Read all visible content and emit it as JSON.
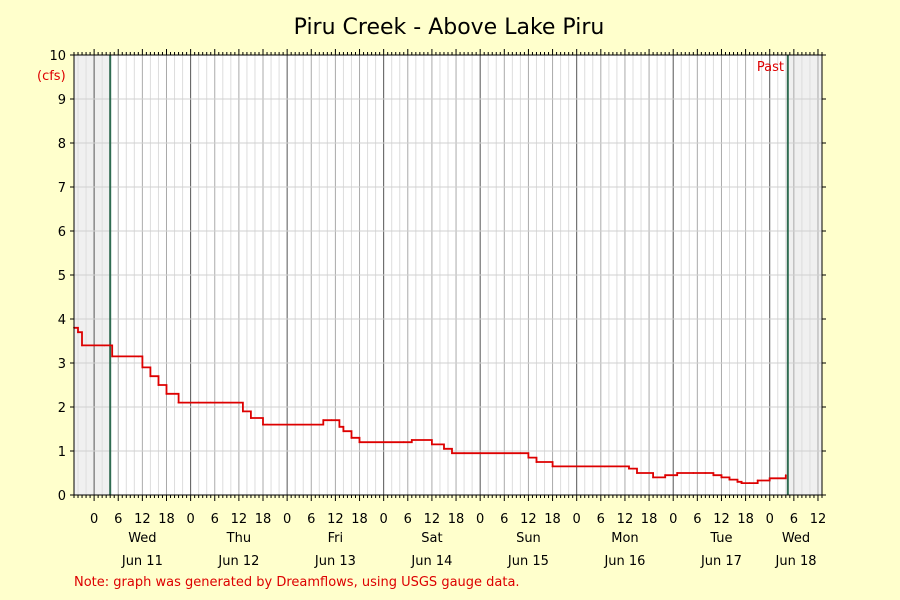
{
  "chart_data": {
    "type": "line",
    "title": "Piru Creek - Above Lake Piru",
    "unit_label": "(cfs)",
    "past_label": "Past",
    "note": "Note: graph was generated by Dreamflows, using USGS gauge data.",
    "ylim": [
      0,
      10
    ],
    "y_ticks": [
      "0",
      "1",
      "2",
      "3",
      "4",
      "5",
      "6",
      "7",
      "8",
      "9",
      "10"
    ],
    "x_hour_ticks": [
      "0",
      "6",
      "12",
      "18",
      "0",
      "6",
      "12",
      "18",
      "0",
      "6",
      "12",
      "18",
      "0",
      "6",
      "12",
      "18",
      "0",
      "6",
      "12",
      "18",
      "0",
      "6",
      "12",
      "18",
      "0",
      "6",
      "12",
      "18",
      "0",
      "6",
      "12"
    ],
    "days": [
      {
        "weekday": "Wed",
        "date": "Jun 11"
      },
      {
        "weekday": "Thu",
        "date": "Jun 12"
      },
      {
        "weekday": "Fri",
        "date": "Jun 13"
      },
      {
        "weekday": "Sat",
        "date": "Jun 14"
      },
      {
        "weekday": "Sun",
        "date": "Jun 15"
      },
      {
        "weekday": "Mon",
        "date": "Jun 16"
      },
      {
        "weekday": "Tue",
        "date": "Jun 17"
      },
      {
        "weekday": "Wed",
        "date": "Jun 18"
      }
    ],
    "xlim": [
      "Jun 10 19:00",
      "Jun 18 13:00"
    ],
    "window": [
      "Jun 11 04:00",
      "Jun 18 04:30"
    ],
    "grid": true,
    "line_color": "#dd0000",
    "series": [
      {
        "x": [
          "Jun 10 19:00",
          "Jun 10 20:00",
          "Jun 10 21:00",
          "Jun 11 00:00",
          "Jun 11 02:30",
          "Jun 11 04:30",
          "Jun 11 11:00",
          "Jun 11 12:00",
          "Jun 11 14:00",
          "Jun 11 16:00",
          "Jun 11 18:00",
          "Jun 11 21:00",
          "Jun 12 02:00",
          "Jun 12 05:00",
          "Jun 12 08:00",
          "Jun 12 13:00",
          "Jun 12 15:00",
          "Jun 12 18:00",
          "Jun 12 19:00",
          "Jun 13 06:00",
          "Jun 13 09:00",
          "Jun 13 11:00",
          "Jun 13 13:00",
          "Jun 13 14:00",
          "Jun 13 16:00",
          "Jun 13 18:00",
          "Jun 14 00:00",
          "Jun 14 05:00",
          "Jun 14 07:00",
          "Jun 14 12:00",
          "Jun 14 15:00",
          "Jun 14 17:00",
          "Jun 14 20:00",
          "Jun 15 10:00",
          "Jun 15 12:00",
          "Jun 15 14:00",
          "Jun 15 18:00",
          "Jun 16 07:00",
          "Jun 16 11:00",
          "Jun 16 13:00",
          "Jun 16 15:00",
          "Jun 16 19:00",
          "Jun 16 22:00",
          "Jun 17 01:00",
          "Jun 17 05:00",
          "Jun 17 08:00",
          "Jun 17 10:00",
          "Jun 17 12:00",
          "Jun 17 14:00",
          "Jun 17 16:00",
          "Jun 17 17:00",
          "Jun 17 19:00",
          "Jun 17 21:00",
          "Jun 18 00:00",
          "Jun 18 04:00"
        ],
        "y": [
          3.8,
          3.7,
          3.4,
          3.4,
          3.4,
          3.15,
          3.15,
          2.9,
          2.7,
          2.5,
          2.3,
          2.1,
          2.1,
          2.1,
          2.1,
          1.9,
          1.75,
          1.6,
          1.6,
          1.6,
          1.7,
          1.7,
          1.55,
          1.45,
          1.3,
          1.2,
          1.2,
          1.2,
          1.25,
          1.15,
          1.05,
          0.95,
          0.95,
          0.95,
          0.85,
          0.75,
          0.65,
          0.65,
          0.65,
          0.6,
          0.5,
          0.4,
          0.45,
          0.5,
          0.5,
          0.5,
          0.45,
          0.4,
          0.35,
          0.3,
          0.27,
          0.27,
          0.33,
          0.38,
          0.45
        ]
      }
    ]
  }
}
